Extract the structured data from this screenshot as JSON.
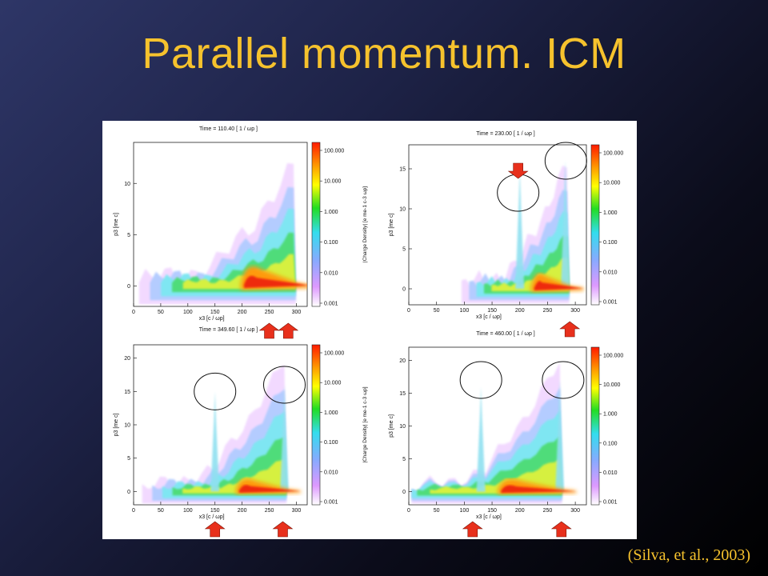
{
  "slide": {
    "title": "Parallel momentum. ICM",
    "citation": "(Silva, et al., 2003)"
  },
  "colors": {
    "title": "#f6c22d",
    "arrow": "#e8301c",
    "background_top": "#2e3667",
    "background_bottom": "#000000"
  },
  "chart_data": [
    {
      "type": "heatmap",
      "title": "Time =   110.40 [ 1 / ωp ]",
      "xlabel": "x3 [c / ωp]",
      "ylabel": "p3 [me c]",
      "colorbar_label": "|Charge Density| [e me-1 c-3 ωp]",
      "xlim": [
        0,
        320
      ],
      "ylim": [
        -2,
        14
      ],
      "xticks": [
        "0",
        "50",
        "100",
        "150",
        "200",
        "250",
        "300"
      ],
      "yticks": [
        "0",
        "5",
        "10"
      ],
      "colorbar_ticks": [
        "100.000",
        "10.000",
        "1.000",
        "0.100",
        "0.010",
        "0.001"
      ],
      "front_start": 145,
      "front_end": 295,
      "peaks": [],
      "arrows": [
        250,
        285
      ],
      "circles": []
    },
    {
      "type": "heatmap",
      "title": "Time =   230.00 [ 1 / ωp ]",
      "xlabel": "x3 [c / ωp]",
      "ylabel": "p3 [me c]",
      "colorbar_label": "|Charge Density| [e me-1 c-3 ωp]",
      "xlim": [
        0,
        320
      ],
      "ylim": [
        -2,
        18
      ],
      "xticks": [
        "0",
        "50",
        "100",
        "150",
        "200",
        "250",
        "300"
      ],
      "yticks": [
        "0",
        "5",
        "10",
        "15"
      ],
      "colorbar_ticks": [
        "100.000",
        "10.000",
        "1.000",
        "0.100",
        "0.010",
        "0.001"
      ],
      "front_start": 185,
      "front_end": 285,
      "peaks": [
        [
          200,
          15
        ],
        [
          282,
          16
        ]
      ],
      "arrows": [
        290
      ],
      "arrows_top": [
        197
      ],
      "circles": [
        [
          197,
          12
        ],
        [
          283,
          16
        ]
      ]
    },
    {
      "type": "heatmap",
      "title": "Time =   349.60 [ 1 / ωp ]",
      "xlabel": "x3 [c / ωp]",
      "ylabel": "p3 [me c]",
      "colorbar_label": "|Charge Density| [e me-1 c-3 ωp]",
      "xlim": [
        0,
        320
      ],
      "ylim": [
        -2,
        22
      ],
      "xticks": [
        "0",
        "50",
        "100",
        "150",
        "200",
        "250",
        "300"
      ],
      "yticks": [
        "0",
        "5",
        "10",
        "15",
        "20"
      ],
      "colorbar_ticks": [
        "100.000",
        "10.000",
        "1.000",
        "0.100",
        "0.010",
        "0.001"
      ],
      "front_start": 140,
      "front_end": 278,
      "peaks": [
        [
          150,
          15
        ],
        [
          278,
          16
        ]
      ],
      "arrows": [
        150,
        275
      ],
      "circles": [
        [
          150,
          15
        ],
        [
          278,
          16
        ]
      ]
    },
    {
      "type": "heatmap",
      "title": "Time =   460.00 [ 1 / ωp ]",
      "xlabel": "x3 [c / ωp]",
      "ylabel": "p3 [me c]",
      "colorbar_label": "|Charge Density| [e me-1 c-3 ωp]",
      "xlim": [
        0,
        320
      ],
      "ylim": [
        -2,
        22
      ],
      "xticks": [
        "0",
        "50",
        "100",
        "150",
        "200",
        "250",
        "300"
      ],
      "yticks": [
        "0",
        "5",
        "10",
        "15",
        "20"
      ],
      "colorbar_ticks": [
        "100.000",
        "10.000",
        "1.000",
        "0.100",
        "0.010",
        "0.001"
      ],
      "front_start": 100,
      "front_end": 272,
      "peaks": [
        [
          130,
          16
        ],
        [
          272,
          17
        ]
      ],
      "arrows": [
        115,
        275
      ],
      "circles": [
        [
          130,
          17
        ],
        [
          278,
          17
        ]
      ]
    }
  ]
}
